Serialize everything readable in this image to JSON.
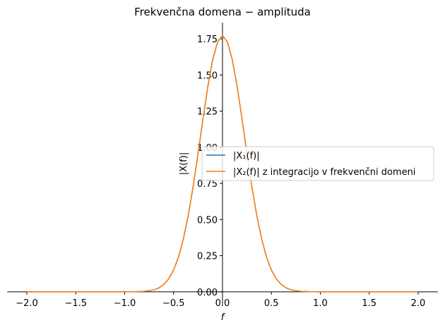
{
  "chart_data": {
    "type": "line",
    "title": "Frekvenčna domena − amplituda",
    "x_label": "f",
    "y_label": "|X(f)|",
    "x": [
      -2,
      -1.5,
      -1.2,
      -1,
      -0.9,
      -0.8,
      -0.7,
      -0.65,
      -0.6,
      -0.55,
      -0.5,
      -0.45,
      -0.4,
      -0.35,
      -0.3,
      -0.25,
      -0.2,
      -0.15,
      -0.1,
      -0.05,
      0,
      0.05,
      0.1,
      0.15,
      0.2,
      0.25,
      0.3,
      0.35,
      0.4,
      0.45,
      0.5,
      0.55,
      0.6,
      0.65,
      0.7,
      0.8,
      0.9,
      1,
      1.2,
      1.5,
      2
    ],
    "series": [
      {
        "name": "|X₁(f)|",
        "color": "#1f77b4",
        "values": [
          0,
          0,
          0,
          0.0001,
          0.0006,
          0.0032,
          0.0141,
          0.0274,
          0.0508,
          0.0895,
          0.1504,
          0.2402,
          0.3655,
          0.5291,
          0.7292,
          0.9564,
          1.1943,
          1.4194,
          1.6059,
          1.7293,
          1.7725,
          1.7293,
          1.6059,
          1.4194,
          1.1943,
          0.9564,
          0.7292,
          0.5291,
          0.3655,
          0.2402,
          0.1504,
          0.0895,
          0.0508,
          0.0274,
          0.0141,
          0.0032,
          0.0006,
          0.0001,
          0,
          0,
          0
        ]
      },
      {
        "name": "|X₂(f)| z integracijo v frekvenčni domeni",
        "color": "#ff7f0e",
        "values": [
          0,
          0,
          0,
          0.0001,
          0.0006,
          0.0032,
          0.0141,
          0.0274,
          0.0508,
          0.0895,
          0.1504,
          0.2402,
          0.3655,
          0.5291,
          0.7292,
          0.9564,
          1.1943,
          1.4194,
          1.6059,
          1.7293,
          1.7725,
          1.7293,
          1.6059,
          1.4194,
          1.1943,
          0.9564,
          0.7292,
          0.5291,
          0.3655,
          0.2402,
          0.1504,
          0.0895,
          0.0508,
          0.0274,
          0.0141,
          0.0032,
          0.0006,
          0.0001,
          0,
          0,
          0
        ]
      }
    ],
    "xlim": [
      -2.2,
      2.2
    ],
    "ylim": [
      -0.0886,
      1.861
    ],
    "xticks": [
      {
        "value": -2,
        "label": "−2.0"
      },
      {
        "value": -1.5,
        "label": "−1.5"
      },
      {
        "value": -1,
        "label": "−1.0"
      },
      {
        "value": -0.5,
        "label": "−0.5"
      },
      {
        "value": 0,
        "label": "0.0"
      },
      {
        "value": 0.5,
        "label": "0.5"
      },
      {
        "value": 1,
        "label": "1.0"
      },
      {
        "value": 1.5,
        "label": "1.5"
      },
      {
        "value": 2,
        "label": "2.0"
      }
    ],
    "yticks": [
      {
        "value": 0,
        "label": "0.00"
      },
      {
        "value": 0.25,
        "label": "0.25"
      },
      {
        "value": 0.5,
        "label": "0.50"
      },
      {
        "value": 0.75,
        "label": "0.75"
      },
      {
        "value": 1,
        "label": "1.00"
      },
      {
        "value": 1.25,
        "label": "1.25"
      },
      {
        "value": 1.5,
        "label": "1.50"
      },
      {
        "value": 1.75,
        "label": "1.75"
      }
    ],
    "legend": "center right"
  }
}
